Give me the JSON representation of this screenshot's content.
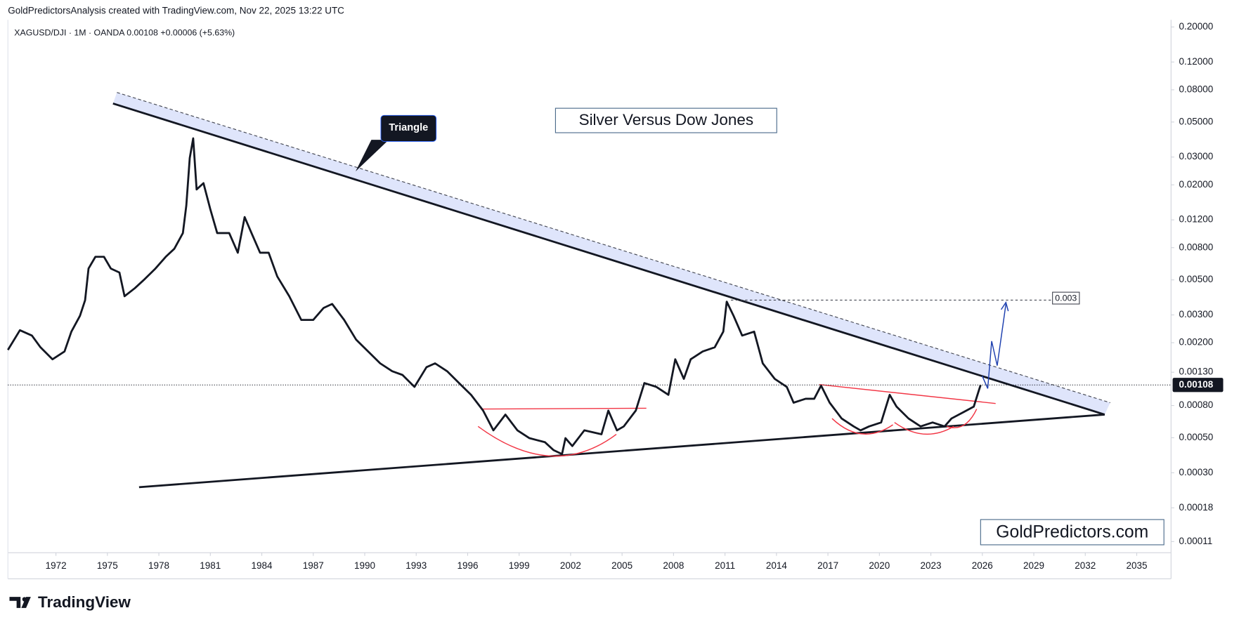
{
  "header": {
    "attribution": "GoldPredictorsAnalysis created with TradingView.com, Nov 22, 2025 13:22 UTC",
    "symbol_line": "XAGUSD/DJI · 1M · OANDA 0.00108 +0.00006 (+5.63%)"
  },
  "chart_data": {
    "type": "line",
    "title": "Silver Versus Dow Jones",
    "color": "#131722",
    "log_y": true,
    "x": [
      1969.2,
      1969.9,
      1970.6,
      1971.1,
      1971.8,
      1972.5,
      1972.9,
      1973.4,
      1973.7,
      1973.9,
      1974.3,
      1974.8,
      1975.2,
      1975.7,
      1976.0,
      1976.6,
      1977.1,
      1977.8,
      1978.4,
      1978.9,
      1979.4,
      1979.6,
      1979.8,
      1980.0,
      1980.2,
      1980.6,
      1981.0,
      1981.4,
      1982.1,
      1982.6,
      1983.0,
      1983.4,
      1983.9,
      1984.4,
      1984.9,
      1985.6,
      1986.3,
      1987.0,
      1987.6,
      1988.1,
      1988.8,
      1989.5,
      1990.2,
      1990.9,
      1991.6,
      1992.2,
      1992.9,
      1993.6,
      1994.1,
      1994.8,
      1995.5,
      1996.2,
      1996.9,
      1997.5,
      1998.2,
      1998.9,
      1999.6,
      2000.5,
      2001.0,
      2001.5,
      2001.7,
      2002.1,
      2002.8,
      2003.8,
      2004.2,
      2004.7,
      2005.1,
      2005.8,
      2006.3,
      2007.0,
      2007.7,
      2008.1,
      2008.6,
      2009.0,
      2009.7,
      2010.4,
      2010.9,
      2011.1,
      2011.5,
      2012.0,
      2012.7,
      2013.2,
      2013.9,
      2014.6,
      2015.0,
      2015.7,
      2016.2,
      2016.6,
      2017.1,
      2017.8,
      2018.5,
      2018.9,
      2019.4,
      2020.1,
      2020.6,
      2021.0,
      2021.7,
      2022.4,
      2023.1,
      2023.8,
      2024.2,
      2024.9,
      2025.5,
      2025.8,
      2025.9
    ],
    "values": [
      0.0018,
      0.0024,
      0.00222,
      0.00187,
      0.00157,
      0.00176,
      0.00235,
      0.00296,
      0.00372,
      0.0059,
      0.007,
      0.007,
      0.0059,
      0.00557,
      0.00394,
      0.00443,
      0.00497,
      0.0059,
      0.007,
      0.00787,
      0.0099,
      0.0148,
      0.0296,
      0.0394,
      0.0187,
      0.0205,
      0.014,
      0.0099,
      0.0099,
      0.00743,
      0.0125,
      0.0099,
      0.00743,
      0.00743,
      0.00526,
      0.00394,
      0.00279,
      0.00279,
      0.00332,
      0.00352,
      0.00279,
      0.00209,
      0.00176,
      0.00148,
      0.00132,
      0.00125,
      0.00105,
      0.0014,
      0.00148,
      0.00132,
      0.00111,
      0.000935,
      0.000743,
      0.000557,
      0.000701,
      0.000557,
      0.000497,
      0.000469,
      0.000418,
      0.000394,
      0.000497,
      0.000443,
      0.000557,
      0.000526,
      0.000743,
      0.000557,
      0.00059,
      0.000743,
      0.00111,
      0.00105,
      0.000935,
      0.00157,
      0.00118,
      0.00157,
      0.00176,
      0.00187,
      0.00235,
      0.00364,
      0.00296,
      0.00222,
      0.00235,
      0.00148,
      0.00118,
      0.00105,
      0.000834,
      0.000883,
      0.000883,
      0.00107,
      0.000834,
      0.000662,
      0.00059,
      0.000557,
      0.00059,
      0.000625,
      0.000935,
      0.000787,
      0.000662,
      0.00059,
      0.000625,
      0.00059,
      0.000662,
      0.000726,
      0.000787,
      0.001,
      0.00108
    ],
    "last_value": 0.00108,
    "xlim": [
      1969.2,
      2037.0
    ],
    "xticks": [
      1972,
      1975,
      1978,
      1981,
      1984,
      1987,
      1990,
      1993,
      1996,
      1999,
      2002,
      2005,
      2008,
      2011,
      2014,
      2017,
      2020,
      2023,
      2026,
      2029,
      2032,
      2035
    ],
    "ylim": [
      9.35e-05,
      0.222
    ],
    "yticks": [
      {
        "value": 0.2,
        "label": "0.20000"
      },
      {
        "value": 0.12,
        "label": "0.12000"
      },
      {
        "value": 0.08,
        "label": "0.08000"
      },
      {
        "value": 0.05,
        "label": "0.05000"
      },
      {
        "value": 0.03,
        "label": "0.03000"
      },
      {
        "value": 0.02,
        "label": "0.02000"
      },
      {
        "value": 0.012,
        "label": "0.01200"
      },
      {
        "value": 0.008,
        "label": "0.00800"
      },
      {
        "value": 0.005,
        "label": "0.00500"
      },
      {
        "value": 0.003,
        "label": "0.00300"
      },
      {
        "value": 0.002,
        "label": "0.00200"
      },
      {
        "value": 0.0013,
        "label": "0.00130"
      },
      {
        "value": 0.0008,
        "label": "0.00080"
      },
      {
        "value": 0.0005,
        "label": "0.00050"
      },
      {
        "value": 0.0003,
        "label": "0.00030"
      },
      {
        "value": 0.00018,
        "label": "0.00018"
      },
      {
        "value": 0.00011,
        "label": "0.00011"
      }
    ],
    "annotations": [
      "Triangle",
      "0.003"
    ]
  },
  "watermark": "GoldPredictors.com",
  "footer": {
    "brand": "TradingView"
  }
}
